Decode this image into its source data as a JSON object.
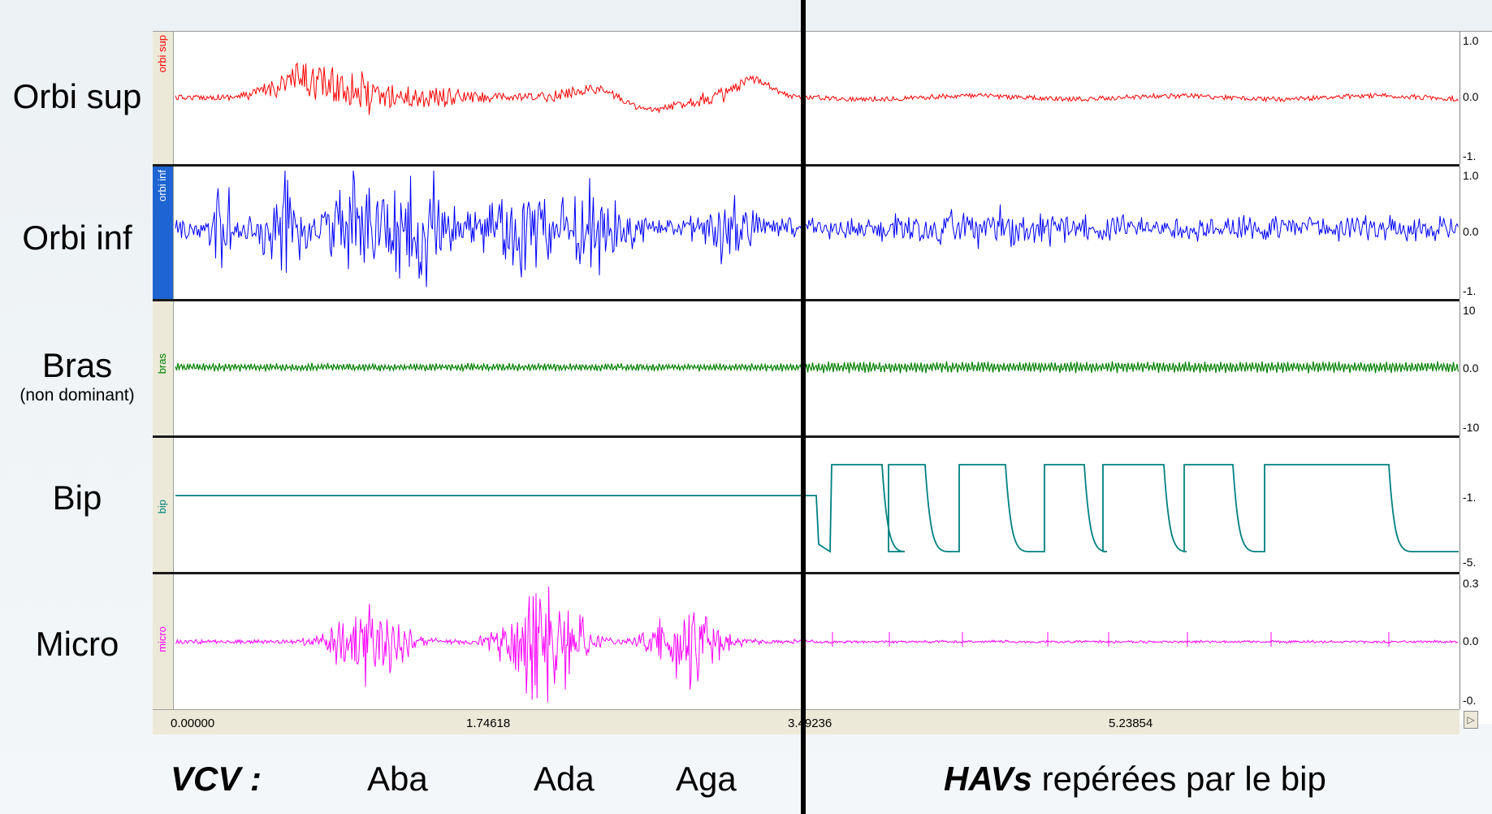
{
  "channels": [
    {
      "name": "orbi sup",
      "label": "Orbi sup",
      "color": "#ff0000",
      "scale": [
        "1.0",
        "0.0",
        "-1."
      ],
      "active": false
    },
    {
      "name": "orbi inf",
      "label": "Orbi inf",
      "color": "#0000ff",
      "scale": [
        "1.0",
        "0.0",
        "-1."
      ],
      "active": true
    },
    {
      "name": "bras",
      "label": "Bras",
      "sublabel": "(non dominant)",
      "color": "#008000",
      "scale": [
        "10",
        "0.0",
        "-10"
      ],
      "active": false
    },
    {
      "name": "bip",
      "label": "Bip",
      "color": "#008080",
      "scale": [
        "-1.",
        "-5."
      ],
      "active": false
    },
    {
      "name": "micro",
      "label": "Micro",
      "color": "#ff00ff",
      "scale": [
        "0.3",
        "0.0",
        "-0."
      ],
      "active": false
    }
  ],
  "time_axis": {
    "ticks": [
      "0.00000",
      "1.74618",
      "3.49236",
      "5.23854"
    ]
  },
  "annotations": {
    "vcv_prefix": "VCV :",
    "vcv_items": [
      "Aba",
      "Ada",
      "Aga"
    ],
    "hav_bold": "HAVs",
    "hav_rest": " repérées par le bip"
  },
  "colors": {
    "cursor": "#000000",
    "panel_bg": "#ece9d8",
    "active_tab": "#1e64d2"
  }
}
